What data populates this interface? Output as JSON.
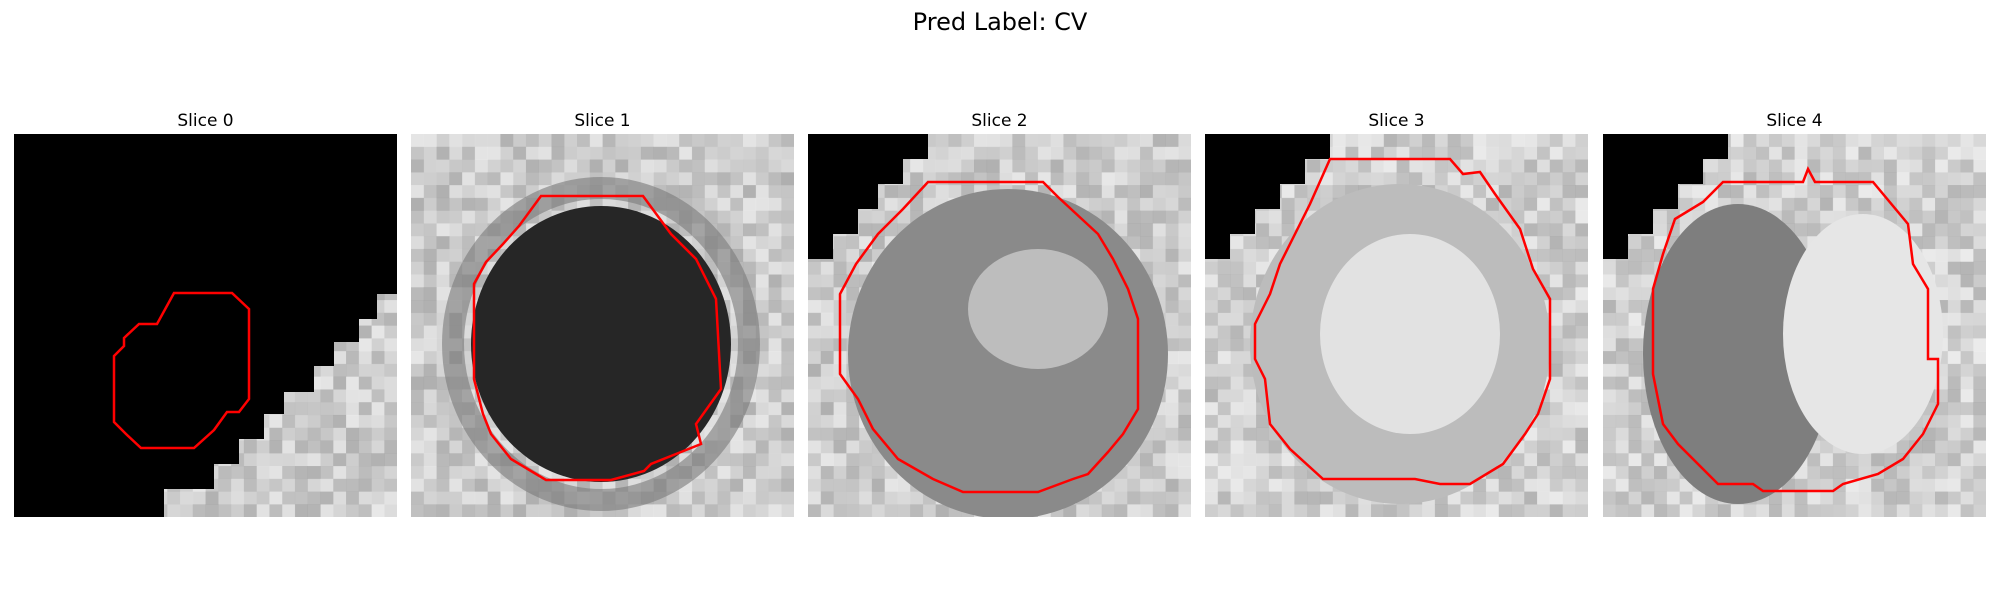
{
  "figure": {
    "title": "Pred Label: CV"
  },
  "colors": {
    "background": "#ffffff",
    "contour": "#ff0000",
    "mask_fill": "#000000"
  },
  "slices": [
    {
      "title": "Slice 0"
    },
    {
      "title": "Slice 1"
    },
    {
      "title": "Slice 2"
    },
    {
      "title": "Slice 3"
    },
    {
      "title": "Slice 4"
    }
  ]
}
